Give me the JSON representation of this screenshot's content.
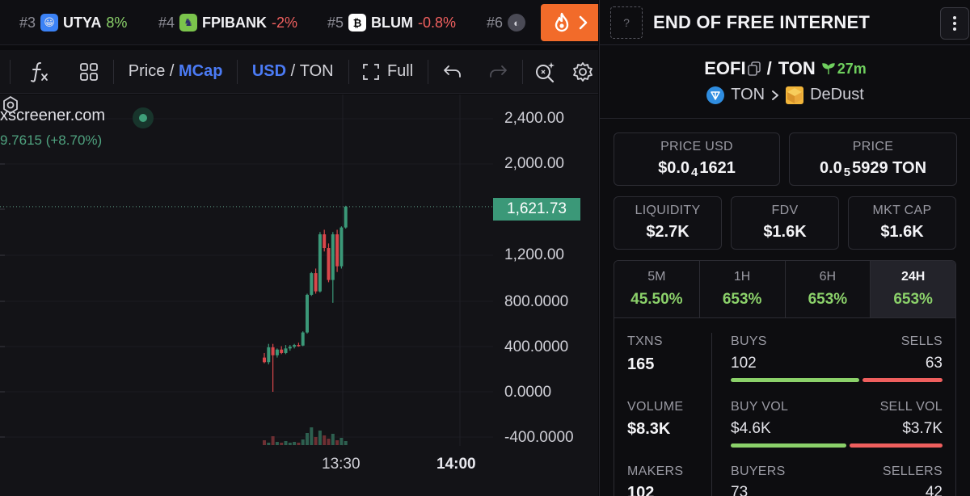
{
  "ticker": [
    {
      "rank": "#3",
      "symbol": "UTYA",
      "change": "8%",
      "dir": "up",
      "icon_color": "#3b82f6",
      "icon_glyph": "😀"
    },
    {
      "rank": "#4",
      "symbol": "FPIBANK",
      "change": "-2%",
      "dir": "down",
      "icon_color": "#7bc44c",
      "icon_glyph": "♞"
    },
    {
      "rank": "#5",
      "symbol": "BLUM",
      "change": "-0.8%",
      "dir": "down",
      "icon_color": "#ffffff",
      "icon_glyph": "₿"
    },
    {
      "rank": "#6",
      "symbol": "",
      "change": "",
      "dir": "up",
      "icon_color": "#4a4a55",
      "icon_glyph": "◐"
    }
  ],
  "toolbar": {
    "price_label": "Price",
    "slash": " / ",
    "mcap_label": "MCap",
    "usd_label": "USD",
    "ton_label": "TON",
    "full_label": "Full"
  },
  "chart": {
    "source": "xscreener.com",
    "delta": "9.7615 (+8.70%)",
    "price_tag": "1,621.73",
    "y_ticks": [
      "2,400.00",
      "2,000.00",
      "1,621.73",
      "1,200.00",
      "800.0000",
      "400.0000",
      "0.0000",
      "-400.0000"
    ],
    "x_ticks": [
      "13:30",
      "14:00"
    ]
  },
  "chart_data": {
    "type": "candlestick",
    "y_unit": "MCap (USD)",
    "ylim": [
      -400,
      2600
    ],
    "candles": [
      {
        "o": 300,
        "h": 340,
        "l": 250,
        "c": 260
      },
      {
        "o": 260,
        "h": 420,
        "l": 240,
        "c": 390
      },
      {
        "o": 390,
        "h": 420,
        "l": 0,
        "c": 320
      },
      {
        "o": 320,
        "h": 380,
        "l": 300,
        "c": 370
      },
      {
        "o": 370,
        "h": 400,
        "l": 330,
        "c": 340
      },
      {
        "o": 340,
        "h": 410,
        "l": 330,
        "c": 380
      },
      {
        "o": 380,
        "h": 410,
        "l": 360,
        "c": 395
      },
      {
        "o": 395,
        "h": 420,
        "l": 380,
        "c": 410
      },
      {
        "o": 410,
        "h": 430,
        "l": 395,
        "c": 405
      },
      {
        "o": 405,
        "h": 530,
        "l": 400,
        "c": 520
      },
      {
        "o": 520,
        "h": 860,
        "l": 510,
        "c": 850
      },
      {
        "o": 850,
        "h": 1050,
        "l": 840,
        "c": 1040
      },
      {
        "o": 1040,
        "h": 1080,
        "l": 860,
        "c": 880
      },
      {
        "o": 880,
        "h": 1400,
        "l": 870,
        "c": 1380
      },
      {
        "o": 1380,
        "h": 1420,
        "l": 1230,
        "c": 1260
      },
      {
        "o": 1260,
        "h": 1300,
        "l": 960,
        "c": 980
      },
      {
        "o": 980,
        "h": 1400,
        "l": 780,
        "c": 1380
      },
      {
        "o": 1380,
        "h": 1420,
        "l": 1050,
        "c": 1100
      },
      {
        "o": 1100,
        "h": 1450,
        "l": 1080,
        "c": 1440
      },
      {
        "o": 1440,
        "h": 1630,
        "l": 1430,
        "c": 1622
      }
    ],
    "volumes": [
      6,
      3,
      11,
      4,
      3,
      5,
      3,
      4,
      3,
      7,
      15,
      22,
      10,
      18,
      12,
      8,
      14,
      6,
      9,
      5
    ]
  },
  "panel": {
    "token_name": "END OF FREE INTERNET",
    "avatar_placeholder": "?",
    "base_symbol": "EOFI",
    "pair_slash": "/",
    "quote_symbol": "TON",
    "pair_age": "27m",
    "chain": "TON",
    "dex": "DeDust",
    "price_usd": {
      "label": "PRICE USD",
      "prefix": "$0.0",
      "zeros": "4",
      "digits": "1621"
    },
    "price_native": {
      "label": "PRICE",
      "prefix": "0.0",
      "zeros": "5",
      "digits": "5929 TON"
    },
    "liquidity": {
      "label": "LIQUIDITY",
      "value": "$2.7K"
    },
    "fdv": {
      "label": "FDV",
      "value": "$1.6K"
    },
    "mkt_cap": {
      "label": "MKT CAP",
      "value": "$1.6K"
    },
    "timeframes": [
      {
        "label": "5M",
        "value": "45.50%"
      },
      {
        "label": "1H",
        "value": "653%"
      },
      {
        "label": "6H",
        "value": "653%"
      },
      {
        "label": "24H",
        "value": "653%"
      }
    ],
    "stats": {
      "txns": {
        "label": "TXNS",
        "value": "165"
      },
      "buys": {
        "label": "BUYS",
        "value": "102"
      },
      "sells": {
        "label": "SELLS",
        "value": "63"
      },
      "buy_share": 0.618,
      "volume": {
        "label": "VOLUME",
        "value": "$8.3K"
      },
      "buy_vol": {
        "label": "BUY VOL",
        "value": "$4.6K"
      },
      "sell_vol": {
        "label": "SELL VOL",
        "value": "$3.7K"
      },
      "buy_vol_share": 0.554,
      "makers": {
        "label": "MAKERS",
        "value": "102"
      },
      "buyers": {
        "label": "BUYERS",
        "value": "73"
      },
      "sellers": {
        "label": "SELLERS",
        "value": "42"
      }
    }
  },
  "colors": {
    "up": "#3b9878",
    "down": "#d9474b",
    "accent": "#4b7bf5",
    "hot": "#f26b2a",
    "green_text": "#8bd16a"
  }
}
